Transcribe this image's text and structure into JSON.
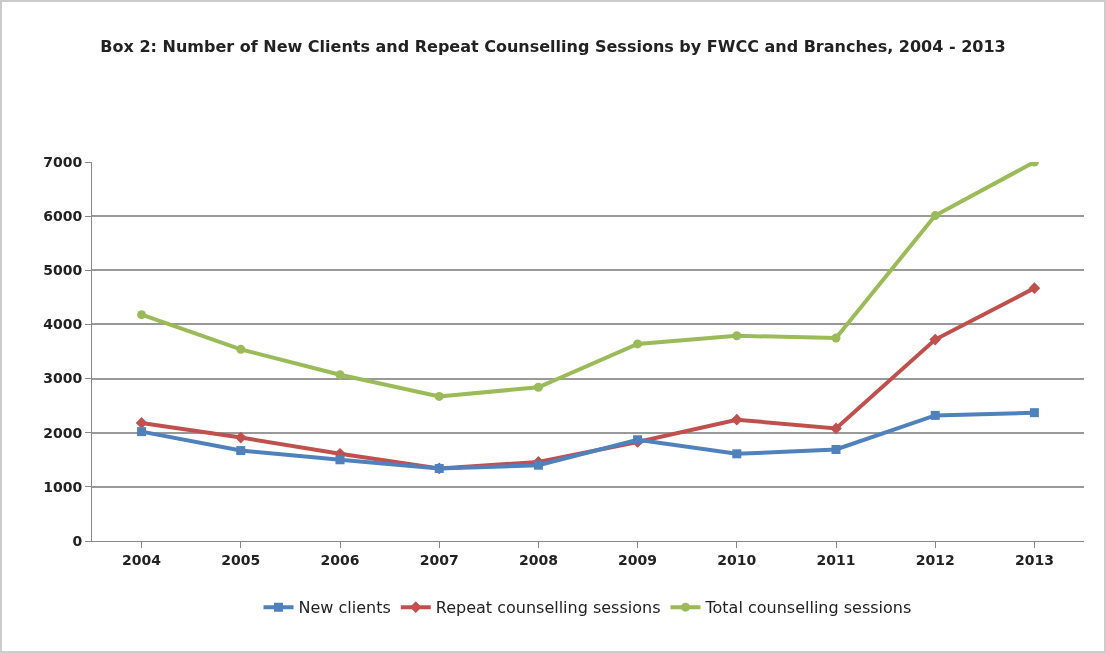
{
  "chart_data": {
    "type": "line",
    "title": "Box 2: Number of New Clients and Repeat Counselling Sessions by FWCC and Branches, 2004 - 2013",
    "categories": [
      "2004",
      "2005",
      "2006",
      "2007",
      "2008",
      "2009",
      "2010",
      "2011",
      "2012",
      "2013"
    ],
    "series": [
      {
        "name": "New clients",
        "color": "#4f81bd",
        "marker": "square",
        "values": [
          2020,
          1670,
          1500,
          1340,
          1400,
          1870,
          1610,
          1690,
          2320,
          2370
        ]
      },
      {
        "name": "Repeat counselling sessions",
        "color": "#c0504d",
        "marker": "diamond",
        "values": [
          2180,
          1910,
          1610,
          1340,
          1460,
          1830,
          2240,
          2080,
          3720,
          4670
        ]
      },
      {
        "name": "Total counselling sessions",
        "color": "#9bbb59",
        "marker": "circle",
        "values": [
          4180,
          3540,
          3070,
          2670,
          2840,
          3640,
          3790,
          3750,
          6010,
          7000
        ]
      }
    ],
    "ylim": [
      0,
      7000
    ],
    "yticks": [
      0,
      1000,
      2000,
      3000,
      4000,
      5000,
      6000,
      7000
    ],
    "grid": "y",
    "legend": "bottom",
    "line_style": "solid"
  }
}
